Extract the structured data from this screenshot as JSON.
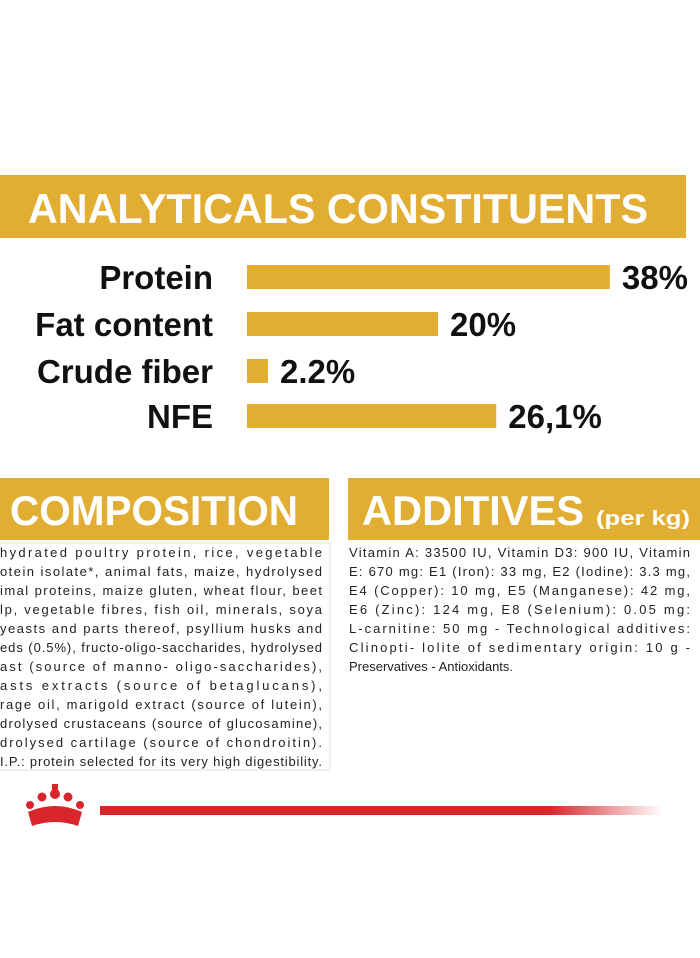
{
  "header": {
    "title": "ANALYTICALS CONSTITUENTS"
  },
  "chart_data": {
    "type": "bar",
    "orientation": "horizontal",
    "categories": [
      "Protein",
      "Fat content",
      "Crude fiber",
      "NFE"
    ],
    "values": [
      38,
      20,
      2.2,
      26.1
    ],
    "value_labels": [
      "38%",
      "20%",
      "2.2%",
      "26,1%"
    ],
    "color": "#e1ad33"
  },
  "composition": {
    "title": "COMPOSITION",
    "lines": [
      "hydrated poultry protein, rice, vegetable",
      "otein isolate*, animal fats, maize, hydrolysed",
      "imal proteins, maize gluten, wheat flour, beet",
      "lp, vegetable fibres, fish oil, minerals, soya",
      "yeasts and parts thereof, psyllium husks and",
      "eds (0.5%), fructo-oligo-saccharides, hydrolysed",
      "ast (source of manno- oligo-saccharides),",
      "asts extracts (source of betaglucans),",
      "rage oil, marigold extract (source of lutein),",
      "drolysed crustaceans (source of glucosamine),",
      "drolysed cartilage (source of chondroitin).",
      "I.P.: protein selected for its very high digestibility."
    ]
  },
  "additives": {
    "title": "ADDITIVES",
    "unit": "(per kg)",
    "lines": [
      "Vitamin A: 33500 IU, Vitamin D3: 900 IU, Vitamin",
      "E: 670 mg: E1 (Iron): 33 mg, E2 (Iodine): 3.3 mg,",
      "E4 (Copper): 10 mg, E5 (Manganese): 42 mg,",
      "E6 (Zinc): 124 mg, E8 (Selenium): 0.05 mg:",
      "L-carnitine: 50 mg - Technological additives:",
      "Clinopti- lolite of sedimentary origin: 10 g -",
      "Preservatives - Antioxidants."
    ]
  }
}
